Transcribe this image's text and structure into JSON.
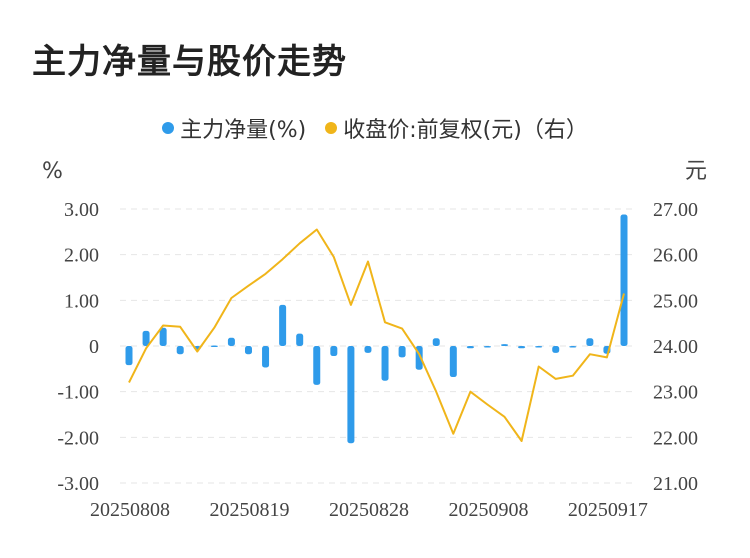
{
  "chart_data": {
    "type": "bar+line",
    "title": "主力净量与股价走势",
    "legend": [
      {
        "label": "主力净量(%)",
        "color": "#2f9bea"
      },
      {
        "label": "收盘价:前复权(元)（右）",
        "color": "#f0b51a"
      }
    ],
    "left_unit": "%",
    "right_unit": "元",
    "left_ticks": [
      "3.00",
      "2.00",
      "1.00",
      "0",
      "-1.00",
      "-2.00",
      "-3.00"
    ],
    "right_ticks": [
      "27.00",
      "26.00",
      "25.00",
      "24.00",
      "23.00",
      "22.00",
      "21.00"
    ],
    "ylim_left": [
      -3,
      3
    ],
    "ylim_right": [
      21,
      27
    ],
    "x_tick_labels": [
      "20250808",
      "20250819",
      "20250828",
      "20250908",
      "20250917"
    ],
    "x_tick_indices": [
      0,
      7,
      14,
      21,
      28
    ],
    "series": [
      {
        "name": "主力净量(%)",
        "type": "bar",
        "axis": "left",
        "values": [
          -0.42,
          0.33,
          0.4,
          -0.18,
          -0.08,
          0.01,
          0.18,
          -0.18,
          -0.47,
          0.9,
          0.27,
          -0.85,
          -0.22,
          -2.13,
          -0.15,
          -0.76,
          -0.25,
          -0.52,
          0.17,
          -0.68,
          -0.05,
          -0.02,
          0.04,
          -0.05,
          -0.03,
          -0.15,
          -0.02,
          0.17,
          -0.17,
          2.88
        ]
      },
      {
        "name": "收盘价:前复权(元)（右）",
        "type": "line",
        "axis": "right",
        "values": [
          23.2,
          23.95,
          24.45,
          24.42,
          23.88,
          24.4,
          25.05,
          25.32,
          25.58,
          25.9,
          26.25,
          26.55,
          25.95,
          24.9,
          25.85,
          24.52,
          24.38,
          23.82,
          23.0,
          22.08,
          23.0,
          22.72,
          22.45,
          21.92,
          23.55,
          23.28,
          23.35,
          23.82,
          23.75,
          25.15
        ]
      }
    ]
  }
}
